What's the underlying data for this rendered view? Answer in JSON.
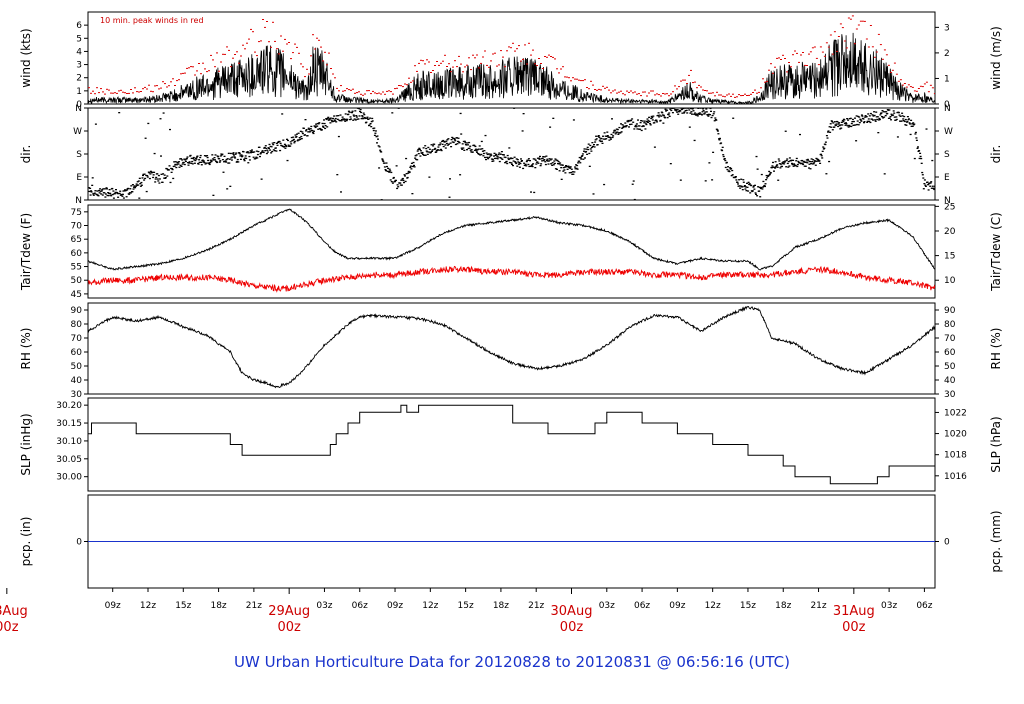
{
  "title": "UW Urban Horticulture Data for 20120828  to  20120831 @ 06:56:16  (UTC)",
  "note": "10 min. peak winds in red",
  "colors": {
    "main": "#000000",
    "peak": "#dd0000",
    "dewpoint": "#ee0000",
    "precip": "#1a33cc",
    "title": "#1a33cc",
    "day": "#cc0000"
  },
  "time_axis": {
    "start_hour": 6.9,
    "end_hour": 78.9,
    "hour_ticks": [
      {
        "hour": 9,
        "label": "09z"
      },
      {
        "hour": 12,
        "label": "12z"
      },
      {
        "hour": 15,
        "label": "15z"
      },
      {
        "hour": 18,
        "label": "18z"
      },
      {
        "hour": 21,
        "label": "21z"
      },
      {
        "hour": 27,
        "label": "03z"
      },
      {
        "hour": 30,
        "label": "06z"
      },
      {
        "hour": 33,
        "label": "09z"
      },
      {
        "hour": 36,
        "label": "12z"
      },
      {
        "hour": 39,
        "label": "15z"
      },
      {
        "hour": 42,
        "label": "18z"
      },
      {
        "hour": 45,
        "label": "21z"
      },
      {
        "hour": 51,
        "label": "03z"
      },
      {
        "hour": 54,
        "label": "06z"
      },
      {
        "hour": 57,
        "label": "09z"
      },
      {
        "hour": 60,
        "label": "12z"
      },
      {
        "hour": 63,
        "label": "15z"
      },
      {
        "hour": 66,
        "label": "18z"
      },
      {
        "hour": 69,
        "label": "21z"
      },
      {
        "hour": 75,
        "label": "03z"
      },
      {
        "hour": 78,
        "label": "06z"
      }
    ],
    "day_labels": [
      {
        "hour": 0,
        "line1": "28Aug",
        "line2": "00z"
      },
      {
        "hour": 24,
        "line1": "29Aug",
        "line2": "00z"
      },
      {
        "hour": 48,
        "line1": "30Aug",
        "line2": "00z"
      },
      {
        "hour": 72,
        "line1": "31Aug",
        "line2": "00z"
      }
    ]
  },
  "chart_data": [
    {
      "id": "wind",
      "type": "line",
      "ylabel_left": "wind (kts)",
      "ylabel_right": "wind (m/s)",
      "ylim": [
        0,
        7
      ],
      "left_ticks": [
        0,
        1,
        2,
        3,
        4,
        5,
        6
      ],
      "right_ticks": [
        0,
        1,
        2,
        3
      ],
      "right_factor": 0.514444,
      "series": [
        {
          "name": "wind speed (kts)",
          "style": "spiky",
          "x": [
            6.9,
            9,
            11,
            13,
            14.5,
            16,
            18,
            19.5,
            21,
            22,
            23,
            24,
            25.5,
            26,
            27,
            28,
            29,
            30,
            31,
            32,
            33,
            35,
            37,
            39,
            41,
            43,
            45,
            47,
            49,
            51,
            53,
            54,
            55,
            56,
            57,
            58,
            59,
            60,
            61,
            62,
            63,
            64,
            65,
            66,
            67,
            68,
            69,
            70,
            71,
            72,
            73,
            74,
            75,
            76,
            77,
            78,
            78.9
          ],
          "y": [
            0.3,
            0.3,
            0.3,
            0.4,
            0.7,
            1.2,
            1.6,
            1.8,
            2.3,
            2.6,
            2.4,
            2.0,
            0.8,
            2.5,
            2.2,
            0.5,
            0.3,
            0.3,
            0.2,
            0.2,
            0.3,
            1.4,
            1.5,
            1.6,
            1.8,
            2.1,
            1.9,
            1.2,
            0.6,
            0.3,
            0.2,
            0.2,
            0.2,
            0.1,
            0.5,
            1.0,
            0.4,
            0.2,
            0.2,
            0.1,
            0.1,
            0.4,
            1.6,
            1.7,
            1.8,
            1.8,
            2.0,
            2.6,
            3.0,
            3.2,
            2.8,
            2.3,
            1.6,
            0.9,
            0.4,
            0.5,
            0.3
          ]
        },
        {
          "name": "10 min. peak winds",
          "style": "dots",
          "x": [
            6.9,
            9,
            11,
            13,
            14.5,
            16,
            18,
            19.5,
            21,
            22,
            23,
            24,
            25.5,
            26,
            27,
            28,
            29,
            30,
            31,
            32,
            33,
            35,
            37,
            39,
            41,
            43,
            45,
            47,
            49,
            51,
            53,
            54,
            55,
            56,
            57,
            58,
            59,
            60,
            61,
            62,
            63,
            64,
            65,
            66,
            67,
            68,
            69,
            70,
            71,
            72,
            73,
            74,
            75,
            76,
            77,
            78,
            78.9
          ],
          "y": [
            1.0,
            1.0,
            1.0,
            1.3,
            1.8,
            2.6,
            3.3,
            3.8,
            4.8,
            5.4,
            4.9,
            4.2,
            2.3,
            4.5,
            4.0,
            1.3,
            1.0,
            0.9,
            0.8,
            0.8,
            1.0,
            2.8,
            3.0,
            3.2,
            3.4,
            3.9,
            3.6,
            2.6,
            1.6,
            1.0,
            0.8,
            0.8,
            0.8,
            0.7,
            1.3,
            2.2,
            1.2,
            0.8,
            0.7,
            0.6,
            0.6,
            1.2,
            3.0,
            3.1,
            3.3,
            3.4,
            3.9,
            4.7,
            5.4,
            5.7,
            5.1,
            4.3,
            3.1,
            1.9,
            1.1,
            1.4,
            0.9
          ]
        }
      ]
    },
    {
      "id": "dir",
      "type": "scatter",
      "ylabel_left": "dir.",
      "ylabel_right": "dir.",
      "ylim": [
        0,
        360
      ],
      "tick_values": [
        0,
        90,
        180,
        270,
        360
      ],
      "tick_labels": [
        "N",
        "E",
        "S",
        "W",
        "N"
      ],
      "series": [
        {
          "name": "wind direction (deg)",
          "x": [
            6.9,
            8,
            9,
            10,
            11,
            12,
            13,
            14,
            15,
            16,
            17,
            18,
            19,
            20,
            21,
            22,
            23,
            24,
            25,
            26,
            27,
            28,
            29,
            30,
            31,
            32,
            33,
            34,
            35,
            36,
            37,
            38,
            39,
            40,
            41,
            42,
            43,
            44,
            45,
            46,
            47,
            48,
            49,
            50,
            51,
            52,
            53,
            54,
            55,
            56,
            57,
            58,
            59,
            60,
            61,
            62,
            63,
            64,
            65,
            66,
            67,
            68,
            69,
            70,
            71,
            72,
            73,
            74,
            75,
            76,
            77,
            78,
            78.9
          ],
          "y": [
            40,
            30,
            25,
            20,
            60,
            100,
            80,
            130,
            150,
            160,
            155,
            160,
            165,
            170,
            180,
            200,
            210,
            230,
            260,
            280,
            300,
            320,
            330,
            335,
            300,
            140,
            60,
            90,
            190,
            200,
            215,
            230,
            210,
            200,
            160,
            170,
            150,
            140,
            150,
            160,
            130,
            110,
            180,
            230,
            250,
            280,
            300,
            290,
            320,
            340,
            355,
            350,
            345,
            340,
            150,
            70,
            50,
            30,
            130,
            150,
            145,
            140,
            150,
            290,
            300,
            310,
            320,
            330,
            335,
            320,
            300,
            60,
            50
          ]
        }
      ]
    },
    {
      "id": "temp",
      "type": "line",
      "ylabel_left": "Tair/Tdew (F)",
      "ylabel_right": "Tair/Tdew (C)",
      "ylim": [
        43.5,
        77.5
      ],
      "left_ticks": [
        45,
        50,
        55,
        60,
        65,
        70,
        75
      ],
      "right_ticks": [
        10,
        15,
        20,
        25
      ],
      "series": [
        {
          "name": "Tair",
          "color_key": "main",
          "x": [
            6.9,
            9,
            11,
            13,
            15,
            17,
            19,
            21,
            23,
            24,
            25,
            26,
            27,
            28,
            29,
            30,
            31,
            32,
            33,
            35,
            37,
            39,
            41,
            43,
            45,
            47,
            49,
            51,
            53,
            55,
            57,
            59,
            61,
            63,
            64,
            65,
            67,
            69,
            71,
            73,
            75,
            77,
            78.9
          ],
          "y": [
            57,
            54,
            55,
            56,
            58,
            61,
            65,
            70,
            74,
            76,
            73,
            69,
            64,
            60,
            58,
            58,
            58,
            58,
            58,
            62,
            67,
            70,
            71,
            72,
            73,
            71,
            70,
            68,
            64,
            58,
            56,
            58,
            57,
            57,
            54,
            55,
            62,
            65,
            69,
            71,
            72,
            66,
            54
          ]
        },
        {
          "name": "Tdew",
          "color_key": "dewpoint",
          "x": [
            6.9,
            9,
            11,
            13,
            15,
            17,
            19,
            21,
            23,
            24,
            25,
            26,
            27,
            29,
            31,
            33,
            35,
            37,
            39,
            41,
            43,
            45,
            47,
            49,
            51,
            53,
            55,
            57,
            59,
            61,
            63,
            65,
            67,
            69,
            71,
            73,
            75,
            77,
            78.9
          ],
          "y": [
            49,
            50,
            50,
            51,
            51,
            51,
            50,
            48,
            47,
            47,
            48,
            49,
            50,
            51,
            52,
            52,
            53,
            54,
            54,
            53,
            53,
            52,
            52,
            53,
            53,
            53,
            52,
            52,
            51,
            52,
            52,
            52,
            53,
            54,
            53,
            51,
            50,
            49,
            47
          ]
        }
      ]
    },
    {
      "id": "rh",
      "type": "line",
      "ylabel_left": "RH (%)",
      "ylabel_right": "RH (%)",
      "ylim": [
        30,
        95
      ],
      "left_ticks": [
        30,
        40,
        50,
        60,
        70,
        80,
        90
      ],
      "right_ticks": [
        30,
        40,
        50,
        60,
        70,
        80,
        90
      ],
      "series": [
        {
          "name": "Relative humidity",
          "x": [
            6.9,
            9,
            11,
            13,
            15,
            17,
            19,
            20,
            21,
            22,
            23,
            24,
            25,
            26,
            27,
            28,
            29,
            30,
            31,
            33,
            35,
            37,
            39,
            41,
            43,
            45,
            47,
            49,
            51,
            53,
            55,
            57,
            58,
            59,
            61,
            63,
            64,
            65,
            66,
            67,
            69,
            71,
            73,
            75,
            77,
            78.9
          ],
          "y": [
            75,
            85,
            82,
            85,
            78,
            72,
            60,
            45,
            40,
            38,
            35,
            38,
            45,
            55,
            65,
            72,
            80,
            85,
            86,
            85,
            84,
            80,
            70,
            60,
            52,
            48,
            50,
            55,
            65,
            78,
            86,
            85,
            80,
            75,
            85,
            92,
            90,
            70,
            68,
            66,
            55,
            48,
            45,
            55,
            65,
            78
          ]
        }
      ]
    },
    {
      "id": "slp",
      "type": "line",
      "ylabel_left": "SLP (inHg)",
      "ylabel_right": "SLP (hPa)",
      "ylim": [
        29.96,
        30.22
      ],
      "left_ticks": [
        30.0,
        30.05,
        30.1,
        30.15,
        30.2
      ],
      "left_tick_labels": [
        "30.00",
        "30.05",
        "30.10",
        "30.15",
        "30.20"
      ],
      "right_ticks": [
        1016,
        1018,
        1020,
        1022
      ],
      "right_factor": 33.8639,
      "series": [
        {
          "name": "Sea-level pressure",
          "style": "step",
          "x": [
            6.9,
            7.2,
            11,
            16,
            19,
            19.5,
            20,
            27,
            27.5,
            28,
            29,
            30,
            31,
            33.5,
            34,
            35,
            36,
            37,
            38,
            42,
            43,
            44,
            46,
            47,
            50,
            51,
            53,
            54,
            57,
            58,
            60,
            63,
            64,
            66,
            67,
            69,
            70,
            71,
            72,
            73,
            74,
            75,
            76,
            77,
            78.9
          ],
          "y": [
            30.12,
            30.15,
            30.12,
            30.12,
            30.09,
            30.09,
            30.06,
            30.06,
            30.09,
            30.12,
            30.15,
            30.18,
            30.18,
            30.2,
            30.18,
            30.2,
            30.2,
            30.2,
            30.2,
            30.2,
            30.15,
            30.15,
            30.12,
            30.12,
            30.15,
            30.18,
            30.18,
            30.15,
            30.12,
            30.12,
            30.09,
            30.06,
            30.06,
            30.03,
            30.0,
            30.0,
            29.98,
            29.98,
            29.98,
            29.98,
            30.0,
            30.03,
            30.03,
            30.03,
            30.03
          ]
        }
      ]
    },
    {
      "id": "pcp",
      "type": "line",
      "ylabel_left": "pcp. (in)",
      "ylabel_right": "pcp. (mm)",
      "ylim": [
        -1,
        1
      ],
      "left_ticks": [
        0
      ],
      "right_ticks": [
        0
      ],
      "series": [
        {
          "name": "Precipitation",
          "color_key": "precip",
          "x": [
            6.9,
            78.9
          ],
          "y": [
            0,
            0
          ]
        }
      ]
    }
  ]
}
